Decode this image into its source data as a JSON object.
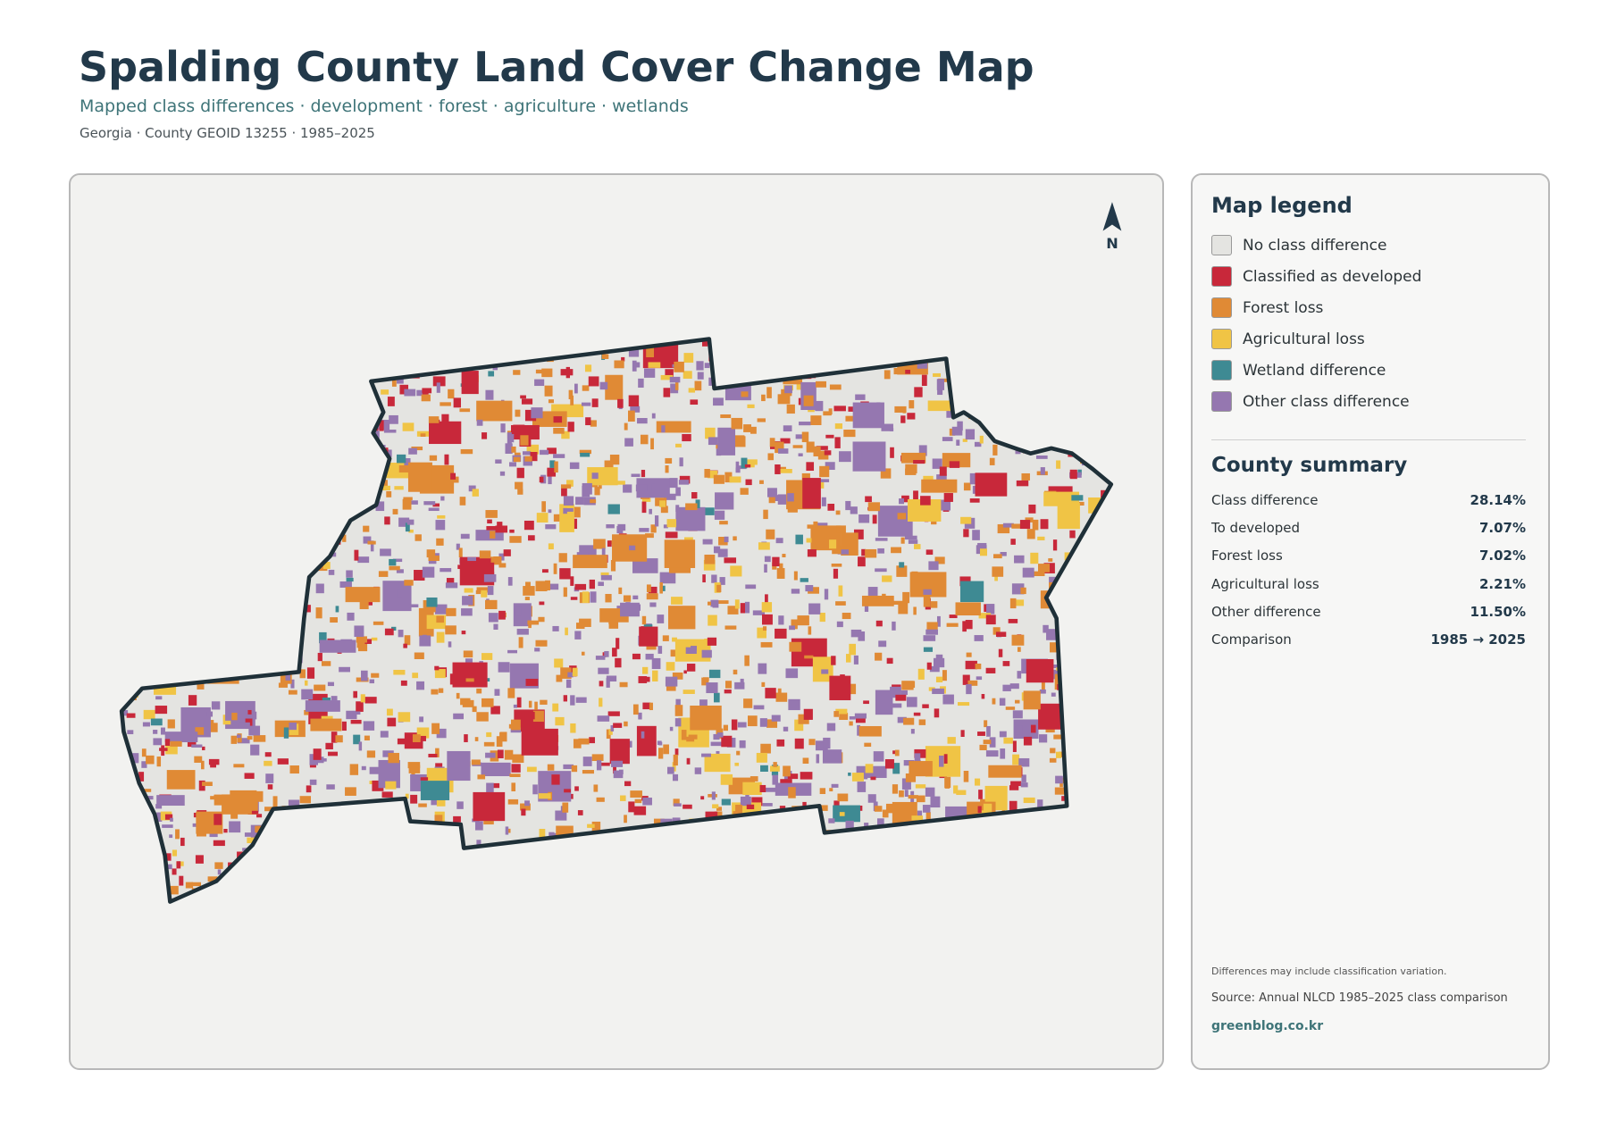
{
  "header": {
    "title": "Spalding County Land Cover Change Map",
    "subtitle": "Mapped class differences · development · forest · agriculture · wetlands",
    "meta": "Georgia · County GEOID 13255 · 1985–2025"
  },
  "map": {
    "north_label": "N"
  },
  "legend": {
    "title": "Map legend",
    "items": [
      {
        "label": "No class difference",
        "color": "#e4e4e1"
      },
      {
        "label": "Classified as developed",
        "color": "#c8283a"
      },
      {
        "label": "Forest loss",
        "color": "#e08a35"
      },
      {
        "label": "Agricultural loss",
        "color": "#f0c445"
      },
      {
        "label": "Wetland difference",
        "color": "#3e8a93"
      },
      {
        "label": "Other class difference",
        "color": "#9577b0"
      }
    ]
  },
  "summary": {
    "title": "County summary",
    "rows": [
      {
        "label": "Class difference",
        "value": "28.14%"
      },
      {
        "label": "To developed",
        "value": "7.07%"
      },
      {
        "label": "Forest loss",
        "value": "7.02%"
      },
      {
        "label": "Agricultural loss",
        "value": "2.21%"
      },
      {
        "label": "Other difference",
        "value": "11.50%"
      },
      {
        "label": "Comparison",
        "value": "1985 → 2025"
      }
    ]
  },
  "notes": {
    "caveat": "Differences may include classification variation.",
    "source": "Source: Annual NLCD 1985–2025 class comparison",
    "credit": "greenblog.co.kr"
  }
}
